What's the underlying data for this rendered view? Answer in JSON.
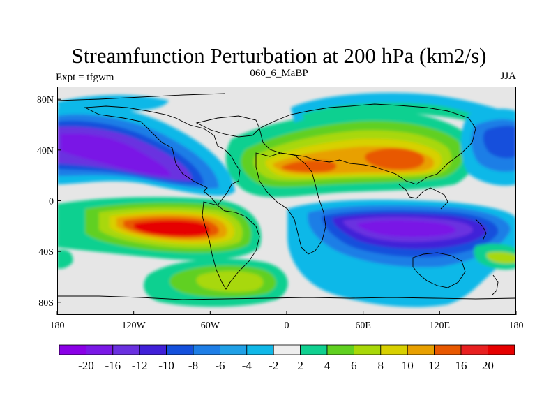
{
  "title": "Streamfunction Perturbation at 200 hPa (km2/s)",
  "subtitle_left": "Expt = tfgwm",
  "subtitle_center": "060_6_MaBP",
  "subtitle_right": "JJA",
  "map": {
    "projection": "cylindrical equidistant",
    "lon_range": [
      -180,
      180
    ],
    "lat_range": [
      -90,
      90
    ],
    "background_color": "#e6e6e6",
    "coastline_color": "#000000",
    "lon_ticks": [
      {
        "lon": -180,
        "label": "180"
      },
      {
        "lon": -120,
        "label": "120W"
      },
      {
        "lon": -60,
        "label": "60W"
      },
      {
        "lon": 0,
        "label": "0"
      },
      {
        "lon": 60,
        "label": "60E"
      },
      {
        "lon": 120,
        "label": "120E"
      },
      {
        "lon": 180,
        "label": "180"
      }
    ],
    "lat_ticks": [
      {
        "lat": 80,
        "label": "80N"
      },
      {
        "lat": 40,
        "label": "40N"
      },
      {
        "lat": 0,
        "label": "0"
      },
      {
        "lat": -40,
        "label": "40S"
      },
      {
        "lat": -80,
        "label": "80S"
      }
    ],
    "anomalies": [
      {
        "name": "north-pacific-east-low",
        "lon": -150,
        "lat": 45,
        "value": -18
      },
      {
        "name": "north-america-low",
        "lon": -105,
        "lat": 30,
        "value": -14
      },
      {
        "name": "south-american-pacific-high",
        "lon": -80,
        "lat": -20,
        "value": 22
      },
      {
        "name": "south-atlantic-high",
        "lon": -45,
        "lat": -70,
        "value": 6
      },
      {
        "name": "eurasia-high",
        "lon": 90,
        "lat": 40,
        "value": 17
      },
      {
        "name": "africa-high",
        "lon": 30,
        "lat": 20,
        "value": 14
      },
      {
        "name": "indian-ocean-low",
        "lon": 90,
        "lat": -20,
        "value": -20
      },
      {
        "name": "west-pacific-north-low",
        "lon": 165,
        "lat": 50,
        "value": -9
      },
      {
        "name": "north-atlantic-ring-high",
        "lon": 30,
        "lat": 75,
        "value": 3
      }
    ]
  },
  "colorbar": {
    "labels": [
      "-20",
      "-16",
      "-12",
      "-10",
      "-8",
      "-6",
      "-4",
      "-2",
      "2",
      "4",
      "6",
      "8",
      "10",
      "12",
      "16",
      "20"
    ],
    "colors": [
      "#8a00e6",
      "#7a18e6",
      "#6a30e0",
      "#4020d8",
      "#1450dc",
      "#1e7ee6",
      "#20a0e6",
      "#10b8e8",
      "#eeeeee",
      "#10d090",
      "#60d020",
      "#a8d808",
      "#d8d000",
      "#e8a000",
      "#e85800",
      "#e82020",
      "#e60000"
    ]
  }
}
